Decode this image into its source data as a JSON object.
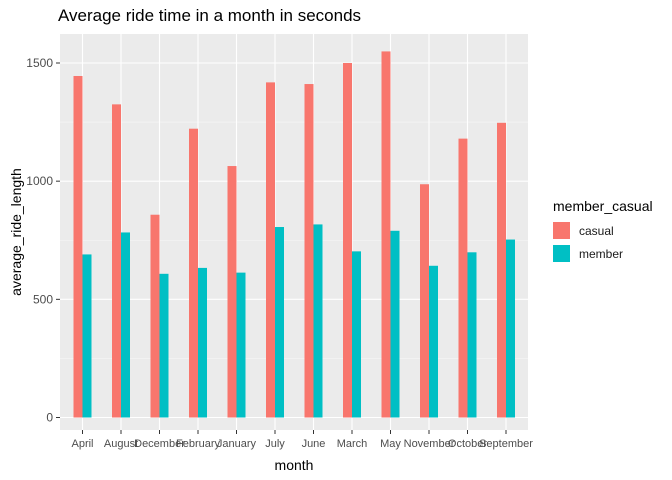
{
  "chart_data": {
    "type": "bar",
    "title": "Average ride time in a month in seconds",
    "xlabel": "month",
    "ylabel": "average_ride_length",
    "categories": [
      "April",
      "August",
      "December",
      "February",
      "January",
      "July",
      "June",
      "March",
      "May",
      "November",
      "October",
      "September"
    ],
    "series": [
      {
        "name": "casual",
        "color": "#F8766D",
        "values": [
          1445,
          1325,
          858,
          1222,
          1064,
          1418,
          1411,
          1500,
          1549,
          987,
          1180,
          1247
        ]
      },
      {
        "name": "member",
        "color": "#00BFC4",
        "values": [
          690,
          783,
          608,
          633,
          613,
          806,
          817,
          703,
          790,
          642,
          699,
          753
        ]
      }
    ],
    "ylim": [
      0,
      1600
    ],
    "yticks": [
      0,
      500,
      1000,
      1500
    ],
    "grid": true,
    "legend": {
      "title": "member_casual",
      "position": "right"
    },
    "background": "#EBEBEB"
  }
}
